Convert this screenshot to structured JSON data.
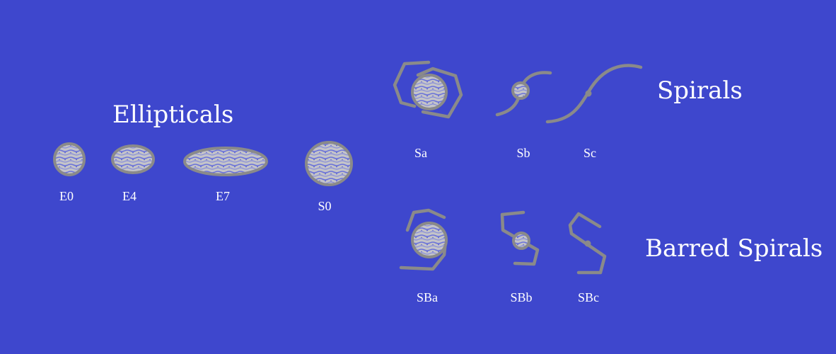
{
  "headings": {
    "ellipticals": "Ellipticals",
    "spirals": "Spirals",
    "barred_spirals": "Barred Spirals"
  },
  "labels": {
    "e0": "E0",
    "e4": "E4",
    "e7": "E7",
    "s0": "S0",
    "sa": "Sa",
    "sb": "Sb",
    "sc": "Sc",
    "sba": "SBa",
    "sbb": "SBb",
    "sbc": "SBc"
  },
  "colors": {
    "background": "#3e47cd",
    "galaxy_outline": "#8a8a8a",
    "galaxy_fill_light": "#c4c4c9",
    "galaxy_fill_dark": "#5b64dc",
    "text": "#ffffff"
  }
}
